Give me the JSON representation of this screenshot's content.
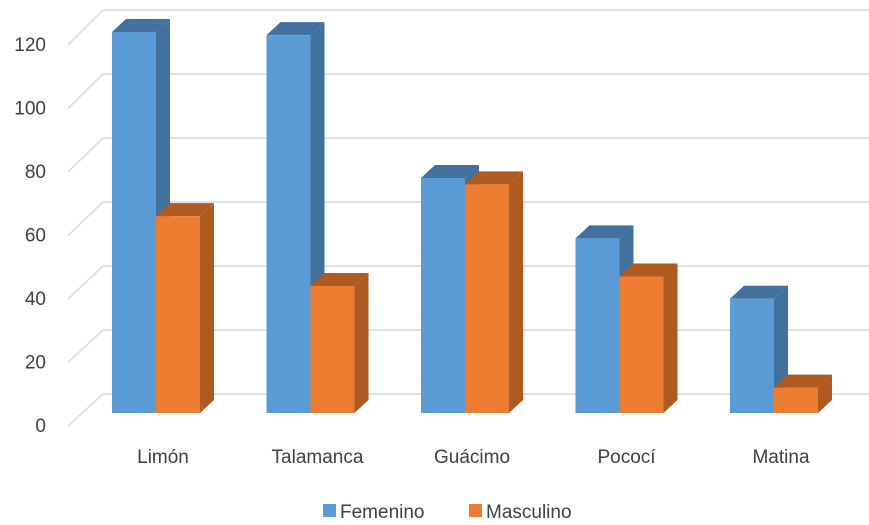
{
  "chart_data": {
    "type": "bar",
    "style": "3d-clustered-column",
    "categories": [
      "Limón",
      "Talamanca",
      "Guácimo",
      "Pococí",
      "Matina"
    ],
    "series": [
      {
        "name": "Femenino",
        "values": [
          120,
          119,
          74,
          55,
          36
        ]
      },
      {
        "name": "Masculino",
        "values": [
          62,
          40,
          72,
          43,
          8
        ]
      }
    ],
    "ylim": [
      0,
      120
    ],
    "yticks": [
      0,
      20,
      40,
      60,
      80,
      100,
      120
    ],
    "grid": true,
    "legend": "bottom",
    "colors": {
      "Femenino": {
        "front": "#5b9bd5",
        "side": "#41719c",
        "top": "#41719c"
      },
      "Masculino": {
        "front": "#ed7d31",
        "side": "#ae5a21",
        "top": "#ae5a21"
      },
      "grid": "#d9d9d9",
      "text": "#404040"
    }
  }
}
